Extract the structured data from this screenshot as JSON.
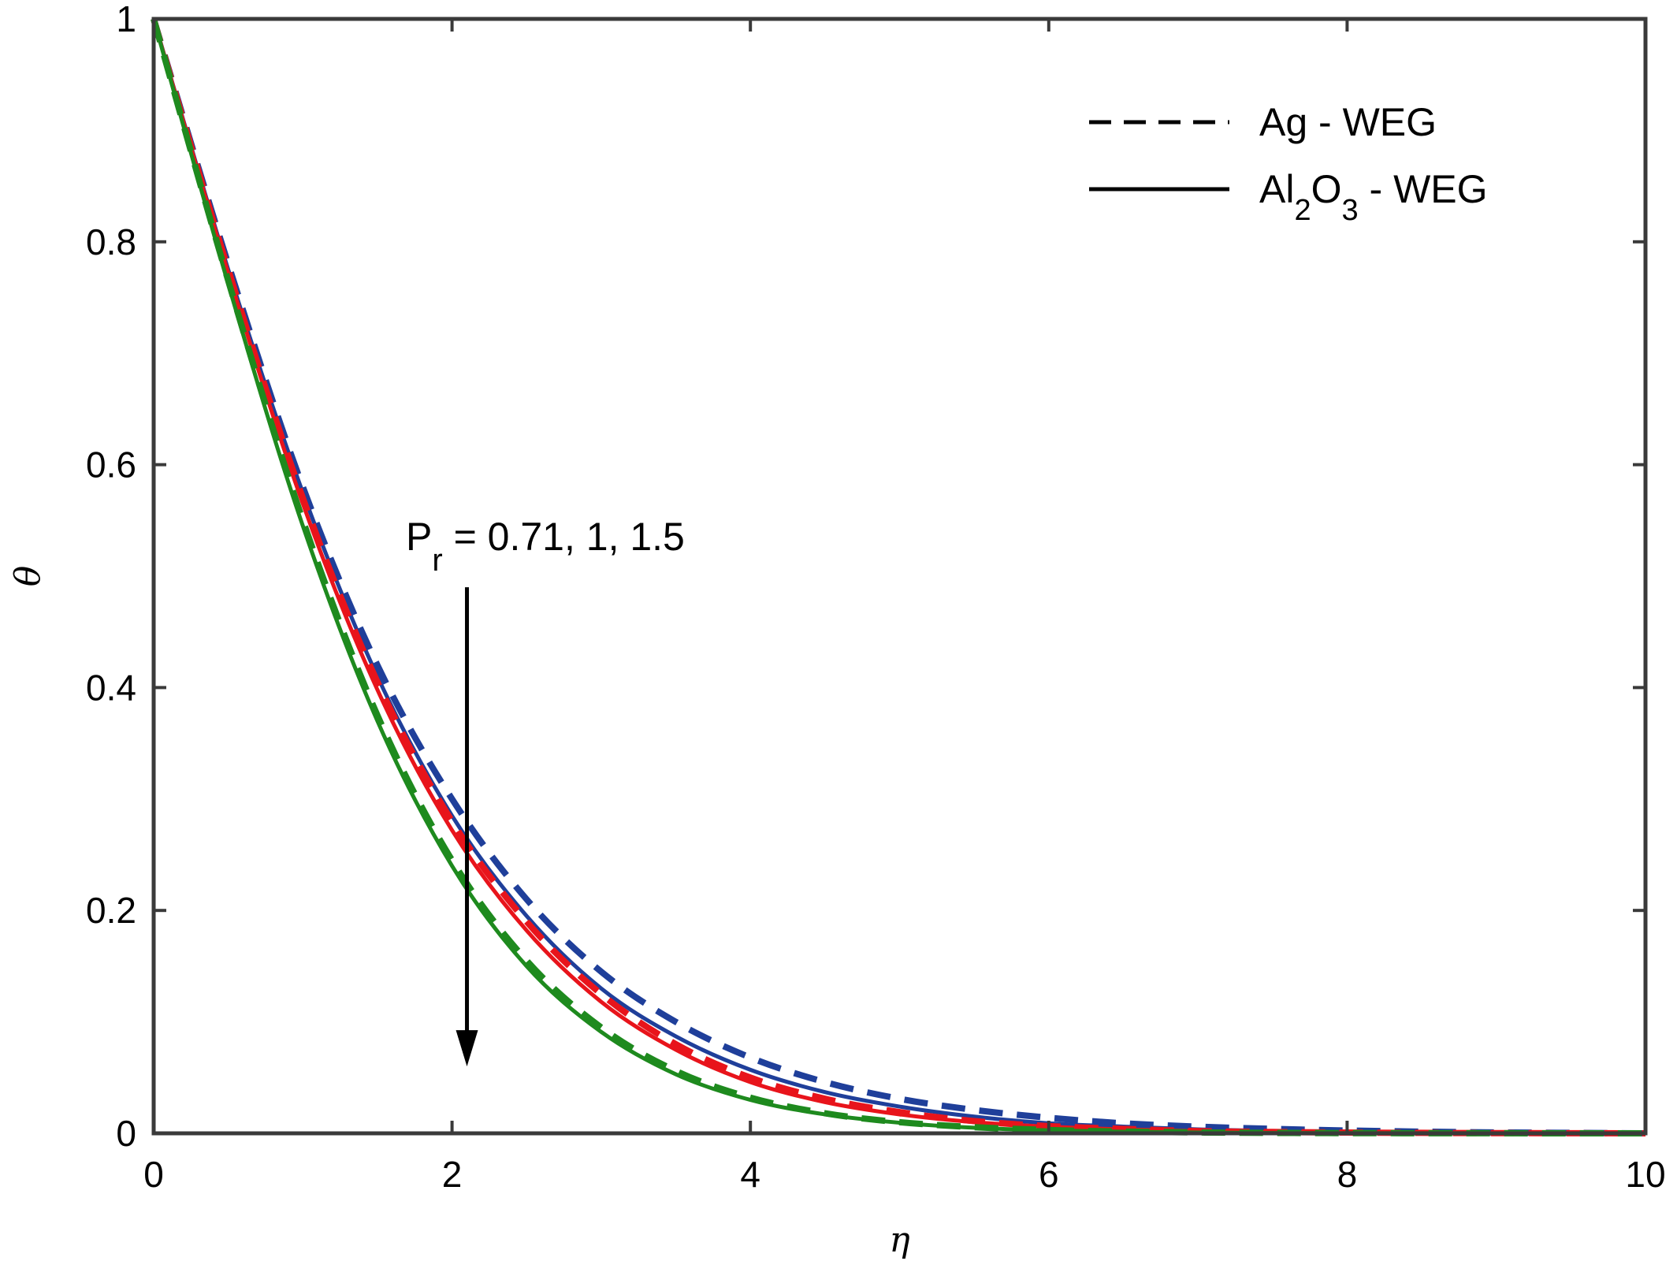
{
  "chart_data": {
    "type": "line",
    "title": "",
    "xlabel": "η",
    "ylabel": "θ",
    "xlim": [
      0,
      10
    ],
    "ylim": [
      0,
      1
    ],
    "x_ticks": [
      0,
      2,
      4,
      6,
      8,
      10
    ],
    "y_ticks": [
      0,
      0.2,
      0.4,
      0.6,
      0.8,
      1
    ],
    "x_tick_labels": [
      "0",
      "2",
      "4",
      "6",
      "8",
      "10"
    ],
    "y_tick_labels": [
      "0",
      "0.2",
      "0.4",
      "0.6",
      "0.8",
      "1"
    ],
    "grid": false,
    "legend_position": "top-right",
    "legend": [
      {
        "label": "Ag - WEG",
        "style": "dashed"
      },
      {
        "label_main": "Al",
        "sub1": "2",
        "mid": "O",
        "sub2": "3",
        "suffix": " - WEG",
        "style": "solid"
      }
    ],
    "annotation": {
      "prefix": "P",
      "subscript": "r",
      "text": " = 0.71, 1, 1.5",
      "arrow_at_x": 2.1,
      "arrow_from_y": 0.49,
      "arrow_to_y": 0.06
    },
    "x": [
      0,
      0.5,
      1,
      1.5,
      2,
      2.5,
      3,
      3.5,
      4,
      4.5,
      5,
      5.5,
      6,
      6.5,
      7,
      7.5,
      8,
      8.5,
      9,
      9.5,
      10
    ],
    "series": [
      {
        "fluid": "Ag - WEG",
        "Pr": "0.71",
        "color": "#1f3f9a",
        "style": "dashed",
        "values": [
          1,
          0.78,
          0.58,
          0.42,
          0.3,
          0.21,
          0.145,
          0.1,
          0.068,
          0.046,
          0.031,
          0.021,
          0.014,
          0.009,
          0.006,
          0.004,
          0.0025,
          0.0015,
          0.0008,
          0.0004,
          0
        ]
      },
      {
        "fluid": "Al2O3 - WEG",
        "Pr": "0.71",
        "color": "#1f3f9a",
        "style": "solid",
        "values": [
          1,
          0.775,
          0.575,
          0.41,
          0.285,
          0.195,
          0.13,
          0.087,
          0.057,
          0.037,
          0.024,
          0.015,
          0.009,
          0.006,
          0.0035,
          0.002,
          0.0012,
          0.0007,
          0.0003,
          0.0001,
          0
        ]
      },
      {
        "fluid": "Ag - WEG",
        "Pr": "1",
        "color": "#e8141b",
        "style": "dashed",
        "values": [
          1,
          0.775,
          0.57,
          0.405,
          0.28,
          0.19,
          0.125,
          0.08,
          0.05,
          0.031,
          0.019,
          0.011,
          0.0065,
          0.004,
          0.002,
          0.0012,
          0.0007,
          0.0004,
          0.0002,
          0.0001,
          0
        ]
      },
      {
        "fluid": "Al2O3 - WEG",
        "Pr": "1",
        "color": "#e8141b",
        "style": "solid",
        "values": [
          1,
          0.772,
          0.565,
          0.398,
          0.272,
          0.182,
          0.118,
          0.075,
          0.046,
          0.028,
          0.017,
          0.01,
          0.006,
          0.0035,
          0.002,
          0.001,
          0.0006,
          0.0003,
          0.0001,
          5e-05,
          0
        ]
      },
      {
        "fluid": "Ag - WEG",
        "Pr": "1.5",
        "color": "#1e8a1e",
        "style": "dashed",
        "values": [
          1,
          0.765,
          0.55,
          0.375,
          0.245,
          0.155,
          0.095,
          0.056,
          0.032,
          0.018,
          0.01,
          0.0055,
          0.003,
          0.0016,
          0.0008,
          0.0004,
          0.0002,
          0.0001,
          5e-05,
          2e-05,
          0
        ]
      },
      {
        "fluid": "Al2O3 - WEG",
        "Pr": "1.5",
        "color": "#1e8a1e",
        "style": "solid",
        "values": [
          1,
          0.762,
          0.545,
          0.37,
          0.24,
          0.15,
          0.091,
          0.053,
          0.03,
          0.017,
          0.0095,
          0.005,
          0.0027,
          0.0014,
          0.0007,
          0.0003,
          0.00015,
          7e-05,
          3e-05,
          1e-05,
          0
        ]
      }
    ]
  }
}
